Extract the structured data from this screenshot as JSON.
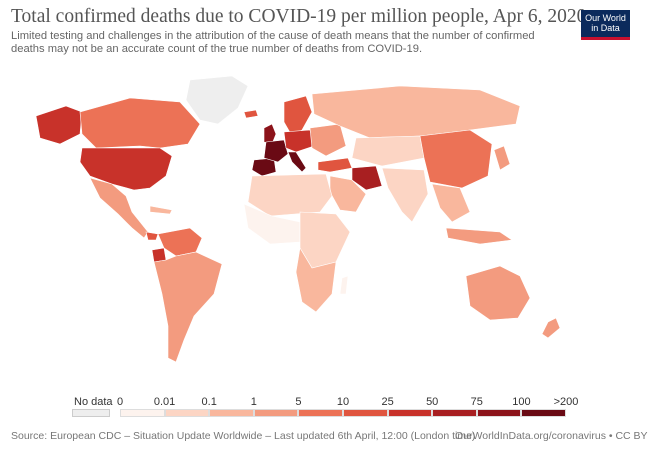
{
  "header": {
    "title": "Total confirmed deaths due to COVID-19 per million people, Apr 6, 2020",
    "subtitle": "Limited testing and challenges in the attribution of the cause of death means that the number of confirmed deaths may not be an accurate count of the true number of deaths from COVID-19."
  },
  "logo": {
    "line1": "Our World",
    "line2": "in Data"
  },
  "legend": {
    "no_data_label": "No data",
    "ticks": [
      "0",
      "0.01",
      "0.1",
      "1",
      "5",
      "10",
      "25",
      "50",
      "75",
      "100",
      ">200"
    ],
    "colors": [
      "#fdf3ee",
      "#fcd5c4",
      "#f9b79d",
      "#f39b7f",
      "#ec7256",
      "#e0553f",
      "#c8322a",
      "#a81f21",
      "#8c131a",
      "#6a0a14"
    ]
  },
  "footer": {
    "source": "Source: European CDC – Situation Update Worldwide – Last updated 6th April, 12:00 (London time)",
    "url": "OurWorldInData.org/coronavirus • CC BY"
  },
  "map": {
    "highlighted_regions": {
      "very_high": [
        "Spain",
        "Italy",
        "France",
        "Belgium"
      ],
      "high": [
        "United States",
        "United Kingdom",
        "Netherlands",
        "Switzerland",
        "Iran"
      ],
      "medium": [
        "Canada",
        "Germany",
        "Sweden",
        "Turkey",
        "Ecuador",
        "Panama"
      ]
    }
  }
}
